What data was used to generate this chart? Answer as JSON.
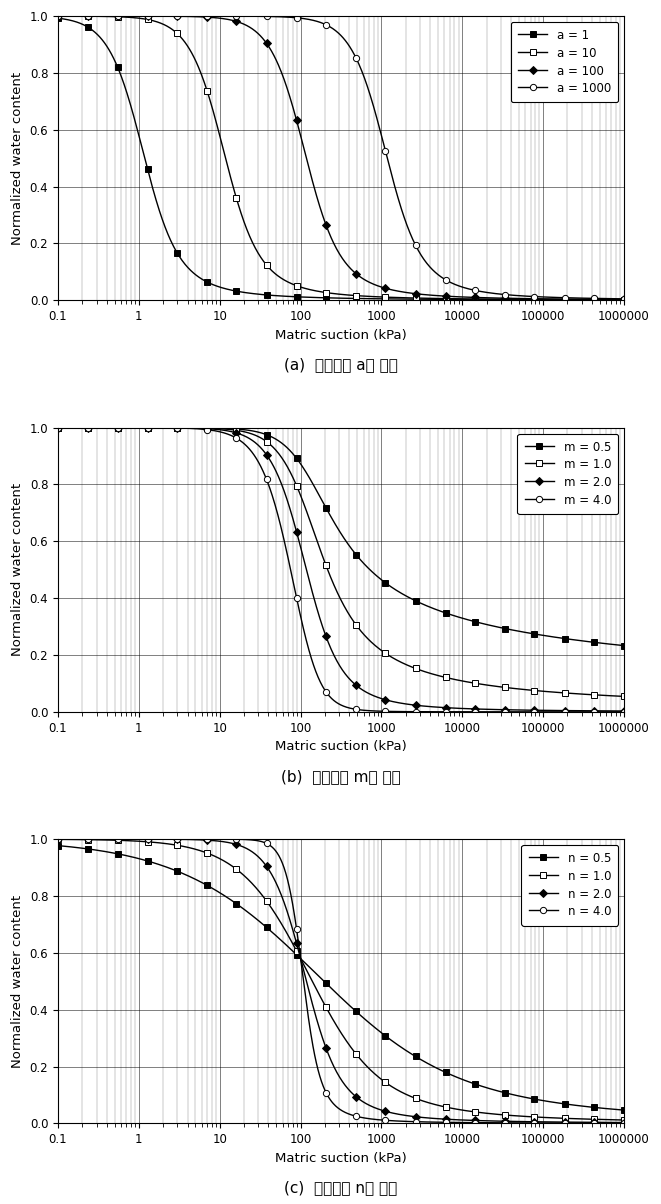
{
  "xlabel": "Matric suction (kPa)",
  "ylabel": "Normalized water content",
  "xlim": [
    0.1,
    1000000
  ],
  "ylim": [
    0,
    1.0
  ],
  "yticks": [
    0,
    0.2,
    0.4,
    0.6,
    0.8,
    1.0
  ],
  "xticks": [
    0.1,
    1,
    10,
    100,
    1000,
    10000,
    100000,
    1000000
  ],
  "xtick_labels": [
    "0.1",
    "1",
    "10",
    "100",
    "1000",
    "10000",
    "100000",
    "1000000"
  ],
  "panel_a": {
    "caption": "(a)  맞춤계수 a의 변화",
    "curves": [
      {
        "a": 1,
        "m": 2,
        "n": 2,
        "label": "a = 1",
        "marker": "s",
        "filled": true
      },
      {
        "a": 10,
        "m": 2,
        "n": 2,
        "label": "a = 10",
        "marker": "s",
        "filled": false
      },
      {
        "a": 100,
        "m": 2,
        "n": 2,
        "label": "a = 100",
        "marker": "D",
        "filled": true
      },
      {
        "a": 1000,
        "m": 2,
        "n": 2,
        "label": "a = 1000",
        "marker": "o",
        "filled": false
      }
    ]
  },
  "panel_b": {
    "caption": "(b)  맞춤계수 m의 변화",
    "curves": [
      {
        "a": 100,
        "m": 0.5,
        "n": 2,
        "label": "m = 0.5",
        "marker": "s",
        "filled": true
      },
      {
        "a": 100,
        "m": 1.0,
        "n": 2,
        "label": "m = 1.0",
        "marker": "s",
        "filled": false
      },
      {
        "a": 100,
        "m": 2.0,
        "n": 2,
        "label": "m = 2.0",
        "marker": "D",
        "filled": true
      },
      {
        "a": 100,
        "m": 4.0,
        "n": 2,
        "label": "m = 4.0",
        "marker": "o",
        "filled": false
      }
    ]
  },
  "panel_c": {
    "caption": "(c)  맞춤계수 n의 변화",
    "curves": [
      {
        "a": 100,
        "m": 2,
        "n": 0.5,
        "label": "n = 0.5",
        "marker": "s",
        "filled": true
      },
      {
        "a": 100,
        "m": 2,
        "n": 1.0,
        "label": "n = 1.0",
        "marker": "s",
        "filled": false
      },
      {
        "a": 100,
        "m": 2,
        "n": 2.0,
        "label": "n = 2.0",
        "marker": "D",
        "filled": true
      },
      {
        "a": 100,
        "m": 2,
        "n": 4.0,
        "label": "n = 4.0",
        "marker": "o",
        "filled": false
      }
    ]
  },
  "caption_fontsize": 11,
  "tick_fontsize": 8.5,
  "label_fontsize": 9.5,
  "legend_fontsize": 8.5
}
